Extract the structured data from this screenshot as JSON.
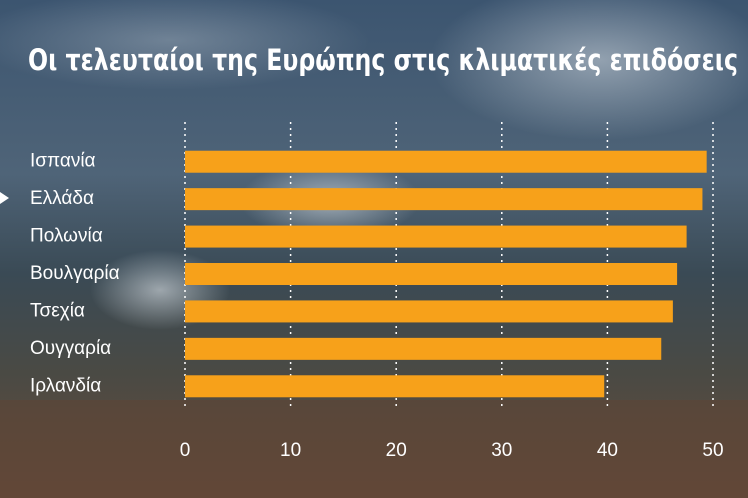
{
  "chart_data": {
    "type": "bar",
    "orientation": "horizontal",
    "title": "Οι τελευταίοι της Ευρώπης στις κλιματικές επιδόσεις",
    "categories": [
      "Ισπανία",
      "Ελλάδα",
      "Πολωνία",
      "Βουλγαρία",
      "Τσεχία",
      "Ουγγαρία",
      "Ιρλανδία"
    ],
    "values": [
      49.4,
      49.0,
      47.5,
      46.6,
      46.2,
      45.1,
      39.7
    ],
    "color": "#f7a11a",
    "xlim": [
      0,
      50
    ],
    "xticks": [
      0,
      10,
      20,
      30,
      40,
      50
    ],
    "grid": true
  }
}
